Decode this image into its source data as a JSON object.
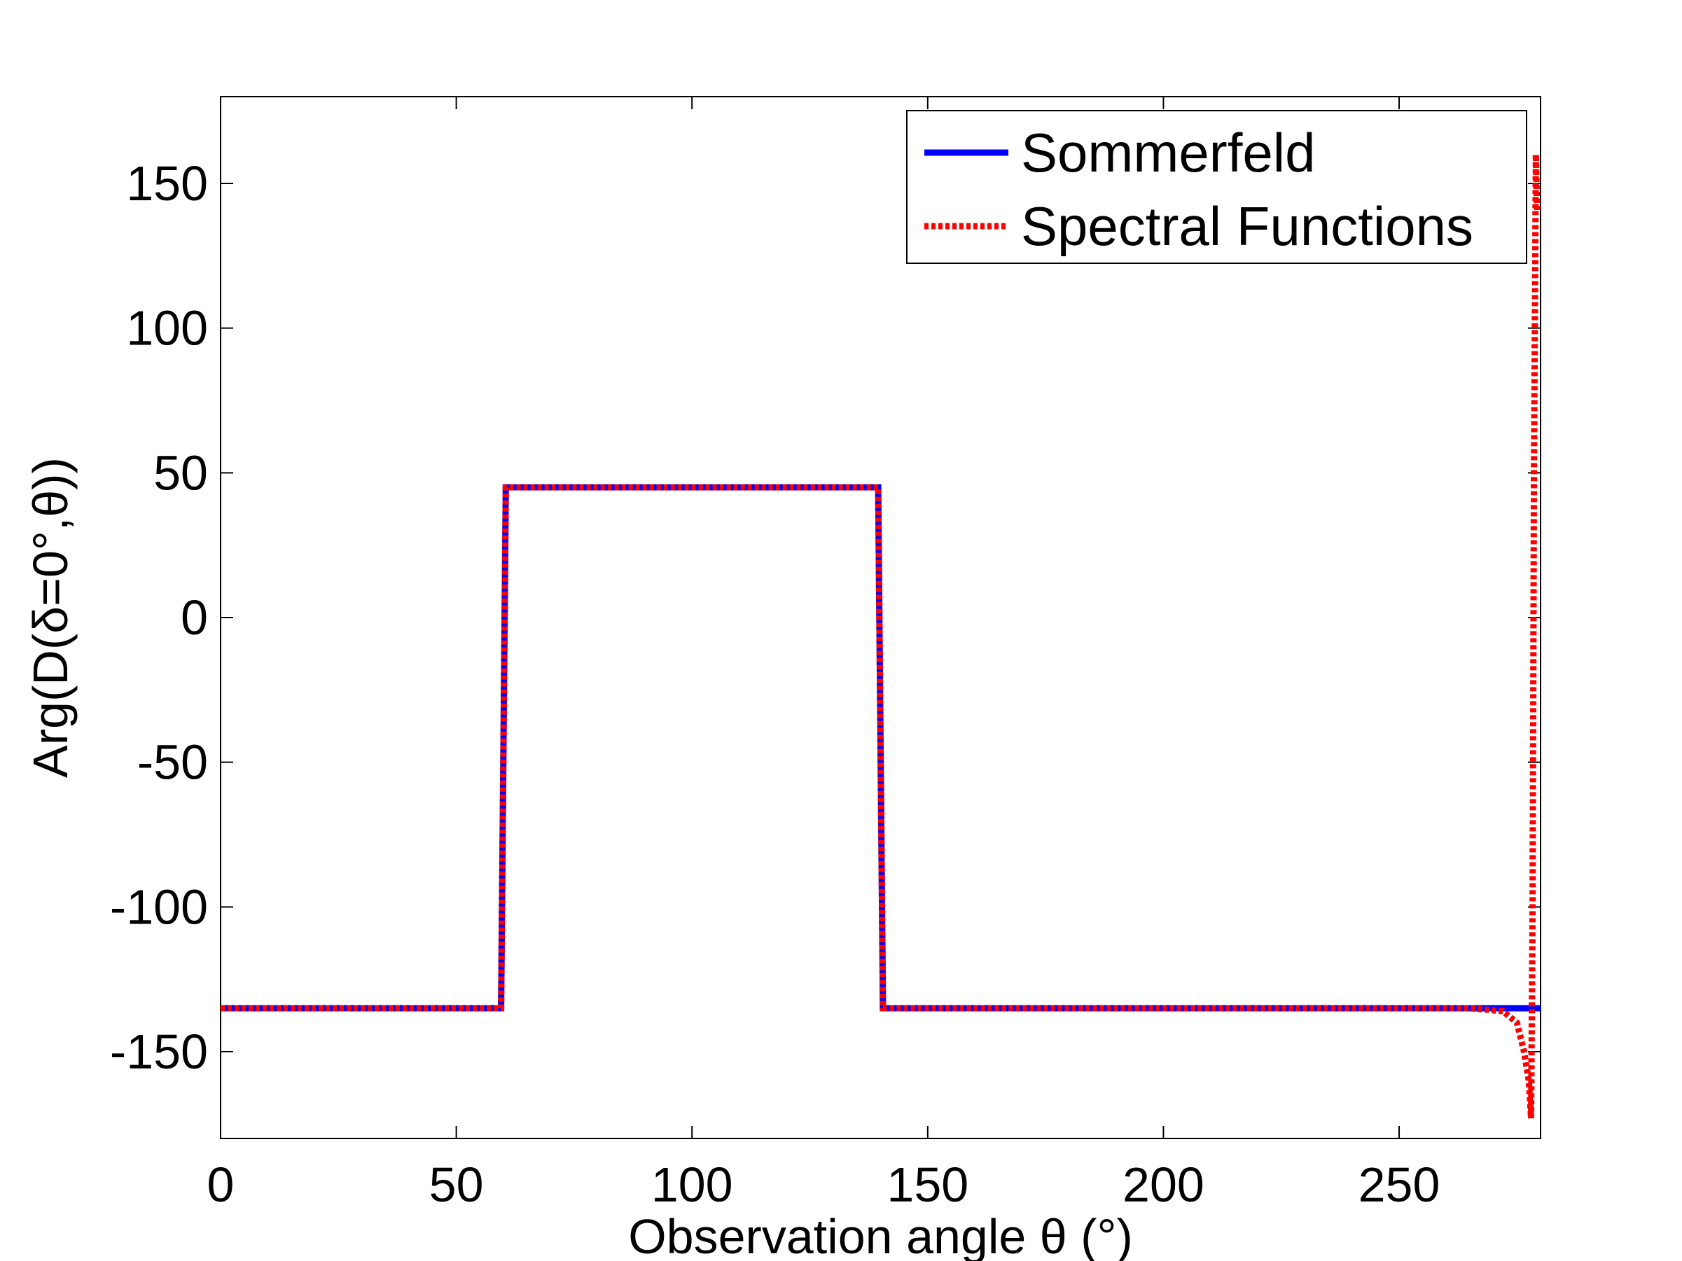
{
  "chart_data": {
    "type": "line",
    "xlabel": "Observation angle θ (°)",
    "ylabel": "Arg(D(δ=0°,θ))",
    "xlim": [
      0,
      280
    ],
    "ylim": [
      -180,
      180
    ],
    "xticks": [
      0,
      50,
      100,
      150,
      200,
      250
    ],
    "yticks": [
      150,
      100,
      50,
      0,
      -50,
      -100,
      -150
    ],
    "xtick_labels": [
      "0",
      "50",
      "100",
      "150",
      "200",
      "250"
    ],
    "ytick_labels": [
      "150",
      "100",
      "50",
      "0",
      "-50",
      "-100",
      "-150"
    ],
    "grid": false,
    "legend_position": "top-right",
    "series": [
      {
        "name": "Sommerfeld",
        "color": "#0000ff",
        "style": "solid",
        "x": [
          0,
          59.5,
          60.5,
          139.5,
          140.5,
          280
        ],
        "y": [
          -135,
          -135,
          45,
          45,
          -135,
          -135
        ]
      },
      {
        "name": "Spectral Functions",
        "color": "#ff0000",
        "style": "dotted",
        "x": [
          0,
          59.5,
          60.5,
          139.5,
          140.5,
          265,
          272,
          275,
          276.5,
          277.5,
          278,
          278.3,
          278.6,
          279,
          279.3
        ],
        "y": [
          -135,
          -135,
          45,
          45,
          -135,
          -135,
          -136,
          -140,
          -150,
          -160,
          -173,
          -100,
          50,
          160,
          140
        ]
      }
    ]
  }
}
